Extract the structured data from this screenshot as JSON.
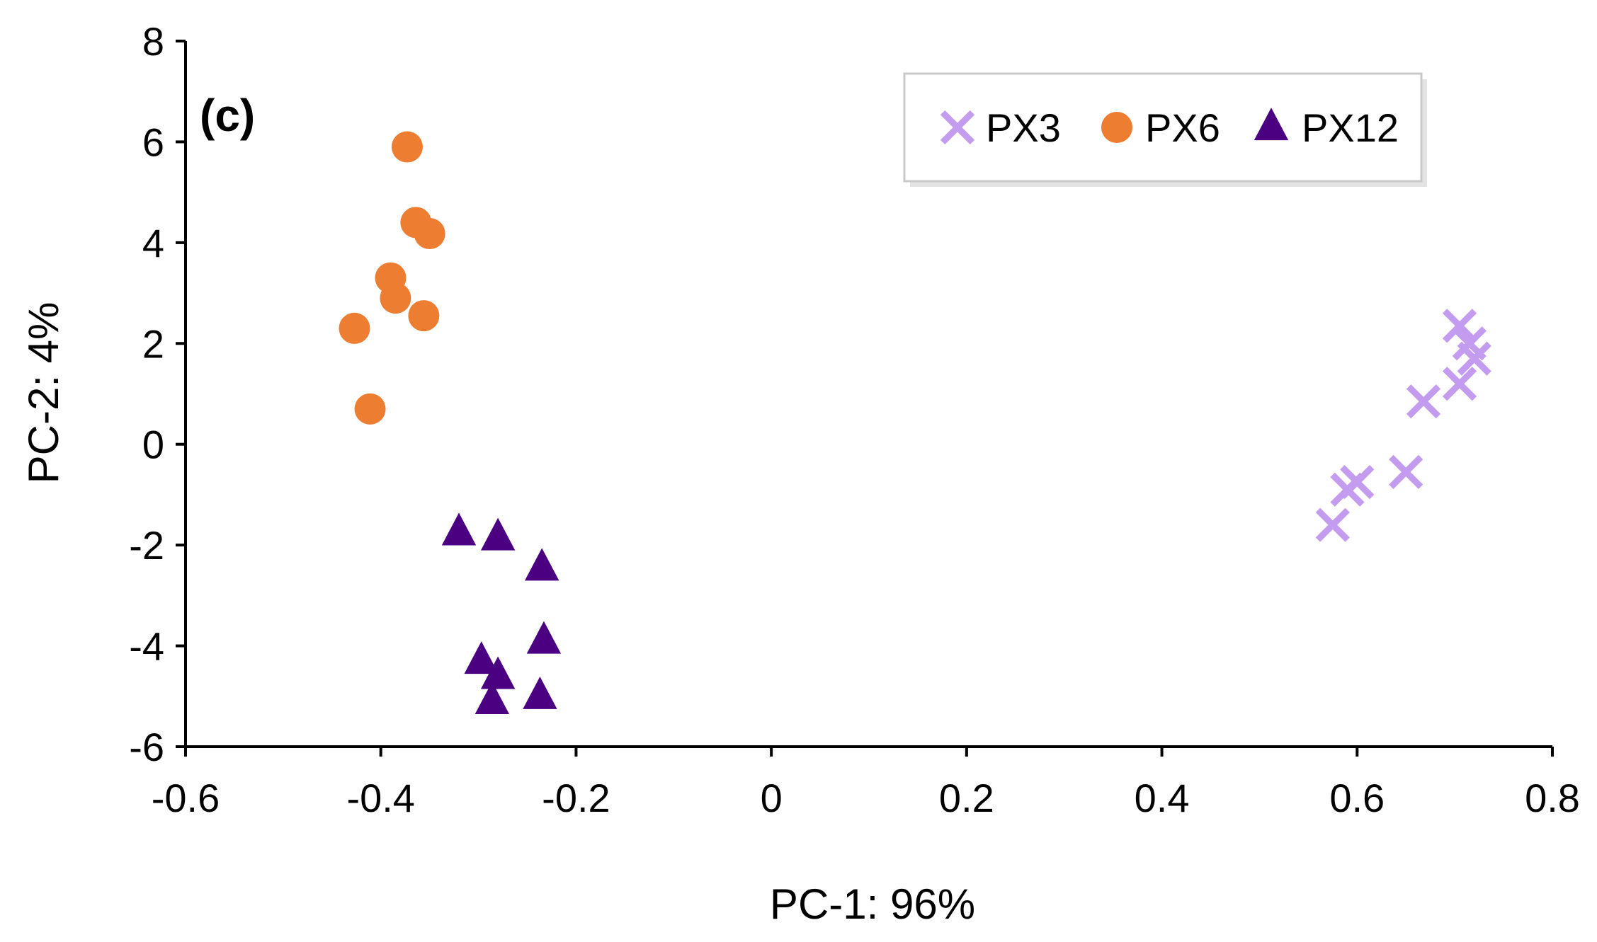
{
  "chart_data": {
    "type": "scatter",
    "panel_label": "(c)",
    "xlabel": "PC-1: 96%",
    "ylabel": "PC-2: 4%",
    "xlim": [
      -0.6,
      0.8
    ],
    "ylim": [
      -6,
      8
    ],
    "x_ticks": [
      -0.6,
      -0.4,
      -0.2,
      0,
      0.2,
      0.4,
      0.6,
      0.8
    ],
    "y_ticks": [
      -6,
      -4,
      -2,
      0,
      2,
      4,
      6,
      8
    ],
    "x_tick_labels": [
      "-0.6",
      "-0.4",
      "-0.2",
      "0",
      "0.2",
      "0.4",
      "0.6",
      "0.8"
    ],
    "y_tick_labels": [
      "-6",
      "-4",
      "-2",
      "0",
      "2",
      "4",
      "6",
      "8"
    ],
    "grid": false,
    "legend_position": "top-right",
    "series": [
      {
        "name": "PX3",
        "marker": "x",
        "color": "#c39bef",
        "points": [
          {
            "x": 0.575,
            "y": -1.6
          },
          {
            "x": 0.59,
            "y": -0.9
          },
          {
            "x": 0.6,
            "y": -0.75
          },
          {
            "x": 0.65,
            "y": -0.55
          },
          {
            "x": 0.668,
            "y": 0.85
          },
          {
            "x": 0.705,
            "y": 1.2
          },
          {
            "x": 0.72,
            "y": 1.7
          },
          {
            "x": 0.715,
            "y": 2.0
          },
          {
            "x": 0.705,
            "y": 2.35
          }
        ]
      },
      {
        "name": "PX6",
        "marker": "circle",
        "color": "#ed7d31",
        "points": [
          {
            "x": -0.373,
            "y": 5.9
          },
          {
            "x": -0.364,
            "y": 4.4
          },
          {
            "x": -0.35,
            "y": 4.18
          },
          {
            "x": -0.39,
            "y": 3.3
          },
          {
            "x": -0.385,
            "y": 2.9
          },
          {
            "x": -0.356,
            "y": 2.55
          },
          {
            "x": -0.427,
            "y": 2.3
          },
          {
            "x": -0.411,
            "y": 0.7
          }
        ]
      },
      {
        "name": "PX12",
        "marker": "triangle",
        "color": "#4b0082",
        "points": [
          {
            "x": -0.32,
            "y": -1.75
          },
          {
            "x": -0.28,
            "y": -1.85
          },
          {
            "x": -0.235,
            "y": -2.45
          },
          {
            "x": -0.233,
            "y": -3.9
          },
          {
            "x": -0.297,
            "y": -4.3
          },
          {
            "x": -0.28,
            "y": -4.6
          },
          {
            "x": -0.286,
            "y": -5.1
          },
          {
            "x": -0.237,
            "y": -5.0
          }
        ]
      }
    ]
  }
}
